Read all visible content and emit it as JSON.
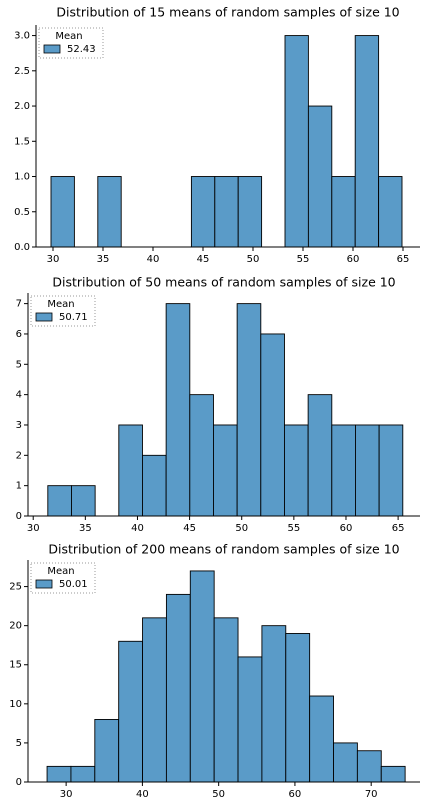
{
  "chart_data": [
    {
      "type": "histogram",
      "title": "Distribution of 15 means of random samples of size 10",
      "bins": [
        29.8,
        32.14,
        34.48,
        36.82,
        39.16,
        41.5,
        43.84,
        46.18,
        48.52,
        50.86,
        53.2,
        55.54,
        57.88,
        60.22,
        62.56,
        64.9
      ],
      "series": [
        {
          "name": "52.43",
          "color": "#5a9bc8",
          "values": [
            1,
            0,
            1,
            0,
            0,
            0,
            1,
            1,
            1,
            0,
            3,
            2,
            1,
            3,
            1
          ]
        }
      ],
      "legend_title": "Mean",
      "legend": "upper left",
      "xlim": [
        28.3,
        66.7
      ],
      "xticks": [
        30,
        35,
        40,
        45,
        50,
        55,
        60,
        65
      ],
      "ylim": [
        0,
        3.15
      ],
      "yticks": [
        {
          "value": 0,
          "label": "0.0"
        },
        {
          "value": 0.5,
          "label": "0.5"
        },
        {
          "value": 1,
          "label": "1.0"
        },
        {
          "value": 1.5,
          "label": "1.5"
        },
        {
          "value": 2,
          "label": "2.0"
        },
        {
          "value": 2.5,
          "label": "2.5"
        },
        {
          "value": 3,
          "label": "3.0"
        }
      ]
    },
    {
      "type": "histogram",
      "title": "Distribution of 50 means of random samples of size 10",
      "bins": [
        31.4,
        33.67,
        35.94,
        38.21,
        40.48,
        42.75,
        45.02,
        47.29,
        49.56,
        51.83,
        54.1,
        56.37,
        58.64,
        60.91,
        63.18,
        65.45
      ],
      "series": [
        {
          "name": "50.71",
          "color": "#5a9bc8",
          "values": [
            1,
            1,
            0,
            3,
            2,
            7,
            4,
            3,
            7,
            6,
            3,
            4,
            3,
            3,
            3
          ]
        }
      ],
      "legend_title": "Mean",
      "legend": "upper left",
      "xlim": [
        29.5,
        67.1
      ],
      "xticks": [
        30,
        35,
        40,
        45,
        50,
        55,
        60,
        65
      ],
      "ylim": [
        0,
        7.35
      ],
      "yticks": [
        0,
        1,
        2,
        3,
        4,
        5,
        6,
        7
      ]
    },
    {
      "type": "histogram",
      "title": "Distribution of 200 means of random samples of size 10",
      "bins": [
        27.5,
        30.63,
        33.76,
        36.89,
        40.02,
        43.15,
        46.28,
        49.41,
        52.54,
        55.67,
        58.8,
        61.93,
        65.06,
        68.19,
        71.32,
        74.45
      ],
      "series": [
        {
          "name": "50.01",
          "color": "#5a9bc8",
          "values": [
            2,
            2,
            8,
            18,
            21,
            24,
            27,
            21,
            16,
            20,
            19,
            11,
            5,
            4,
            2
          ]
        }
      ],
      "legend_title": "Mean",
      "legend": "upper left",
      "xlim": [
        25.0,
        76.4
      ],
      "xticks": [
        30,
        40,
        50,
        60,
        70
      ],
      "ylim": [
        0,
        28.4
      ],
      "yticks": [
        0,
        5,
        10,
        15,
        20,
        25
      ]
    }
  ]
}
